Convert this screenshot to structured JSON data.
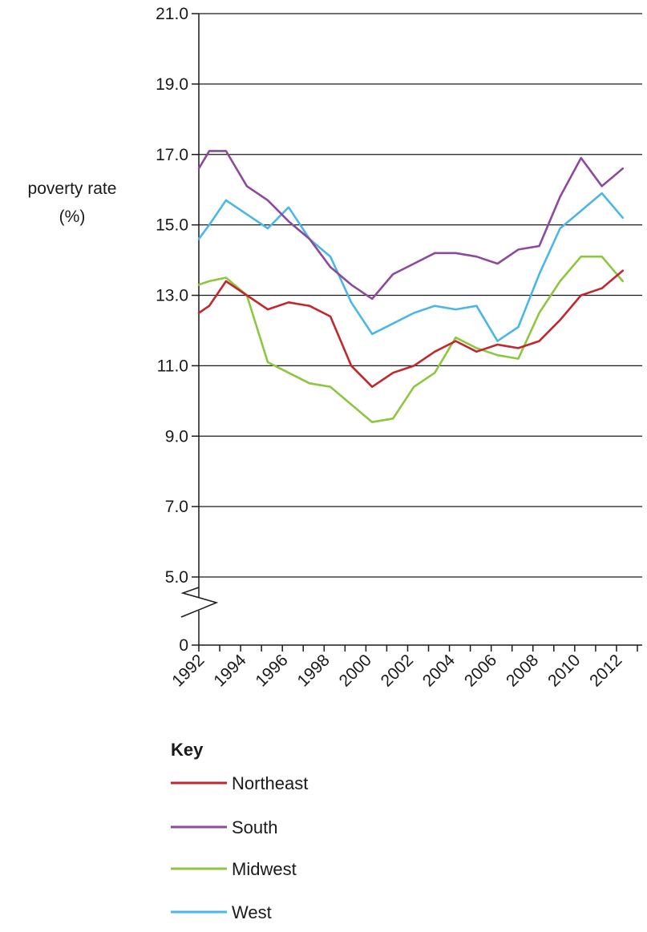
{
  "chart_data": {
    "type": "line",
    "title": "",
    "ylabel": [
      "poverty rate",
      "(%)"
    ],
    "xlabel": "",
    "y_tick_labels": [
      "0",
      "5.0",
      "7.0",
      "9.0",
      "11.0",
      "13.0",
      "15.0",
      "17.0",
      "19.0",
      "21.0"
    ],
    "x_tick_labels": [
      "1992",
      "1994",
      "1996",
      "1998",
      "2000",
      "2002",
      "2004",
      "2006",
      "2008",
      "2010",
      "2012"
    ],
    "ylim": [
      0,
      21.0
    ],
    "axis_break": "between 0 and 5.0",
    "grid": "horizontal",
    "legend": {
      "title": "Key",
      "placement": "below chart",
      "entries": [
        "Northeast",
        "South",
        "Midwest",
        "West"
      ]
    },
    "x": [
      1992,
      1992.5,
      1993.3,
      1994.3,
      1995.3,
      1996.3,
      1997.3,
      1998.3,
      1999.3,
      2000.3,
      2001.3,
      2002.3,
      2003.3,
      2004.3,
      2005.3,
      2006.3,
      2007.3,
      2008.3,
      2009.3,
      2010.3,
      2011.3,
      2012.3
    ],
    "series": [
      {
        "name": "Northeast",
        "color": "#c1272d",
        "values": [
          12.5,
          12.7,
          13.4,
          13.0,
          12.6,
          12.8,
          12.7,
          12.4,
          11.0,
          10.4,
          10.8,
          11.0,
          11.4,
          11.7,
          11.4,
          11.6,
          11.5,
          11.7,
          12.3,
          13.0,
          13.2,
          13.7
        ]
      },
      {
        "name": "South",
        "color": "#8b4a9c",
        "values": [
          16.6,
          17.1,
          17.1,
          16.1,
          15.7,
          15.1,
          14.6,
          13.8,
          13.3,
          12.9,
          13.6,
          13.9,
          14.2,
          14.2,
          14.1,
          13.9,
          14.3,
          14.4,
          15.8,
          16.9,
          16.1,
          16.6
        ]
      },
      {
        "name": "Midwest",
        "color": "#8dc63f",
        "values": [
          13.3,
          13.4,
          13.5,
          13.0,
          11.1,
          10.8,
          10.5,
          10.4,
          9.9,
          9.4,
          9.5,
          10.4,
          10.8,
          11.8,
          11.5,
          11.3,
          11.2,
          12.5,
          13.4,
          14.1,
          14.1,
          13.4
        ]
      },
      {
        "name": "West",
        "color": "#4ab7e6",
        "values": [
          14.6,
          15.0,
          15.7,
          15.3,
          14.9,
          15.5,
          14.6,
          14.1,
          12.8,
          11.9,
          12.2,
          12.5,
          12.7,
          12.6,
          12.7,
          11.7,
          12.1,
          13.6,
          14.9,
          15.4,
          15.9,
          15.2
        ]
      }
    ]
  }
}
